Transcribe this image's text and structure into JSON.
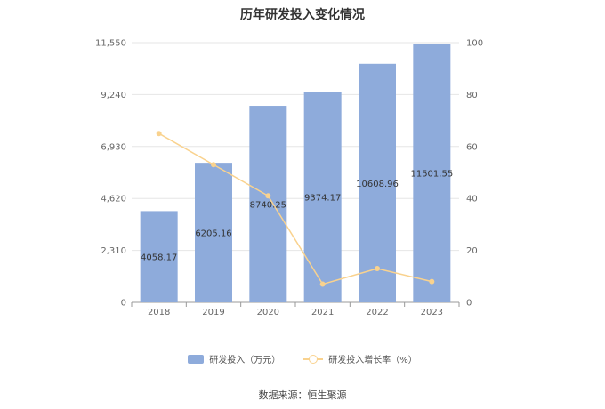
{
  "title": "历年研发投入变化情况",
  "legend": {
    "bar_label": "研发投入（万元）",
    "line_label": "研发投入增长率（%）"
  },
  "source": "数据来源：恒生聚源",
  "colors": {
    "bar": "#8eabdb",
    "line": "#f9d28e",
    "grid": "#e6e6e6",
    "axis": "#999999"
  },
  "chart_data": {
    "type": "bar",
    "title": "历年研发投入变化情况",
    "categories": [
      "2018",
      "2019",
      "2020",
      "2021",
      "2022",
      "2023"
    ],
    "series": [
      {
        "name": "研发投入（万元）",
        "type": "bar",
        "axis": "left",
        "values": [
          4058.17,
          6205.16,
          8740.25,
          9374.17,
          10608.96,
          11501.55
        ],
        "labels": [
          "4058.17",
          "6205.16",
          "8740.25",
          "9374.17",
          "10608.96",
          "11501.55"
        ]
      },
      {
        "name": "研发投入增长率（%）",
        "type": "line",
        "axis": "right",
        "values": [
          65,
          53,
          41,
          7,
          13,
          8
        ]
      }
    ],
    "y_left": {
      "ylim": [
        0,
        11550
      ],
      "ticks": [
        0,
        2310,
        4620,
        6930,
        9240,
        11550
      ],
      "tick_labels": [
        "0",
        "2,310",
        "4,620",
        "6,930",
        "9,240",
        "11,550"
      ]
    },
    "y_right": {
      "ylim": [
        0,
        100
      ],
      "ticks": [
        0,
        20,
        40,
        60,
        80,
        100
      ],
      "tick_labels": [
        "0",
        "20",
        "40",
        "60",
        "80",
        "100"
      ]
    },
    "grid": true,
    "legend_position": "bottom"
  }
}
